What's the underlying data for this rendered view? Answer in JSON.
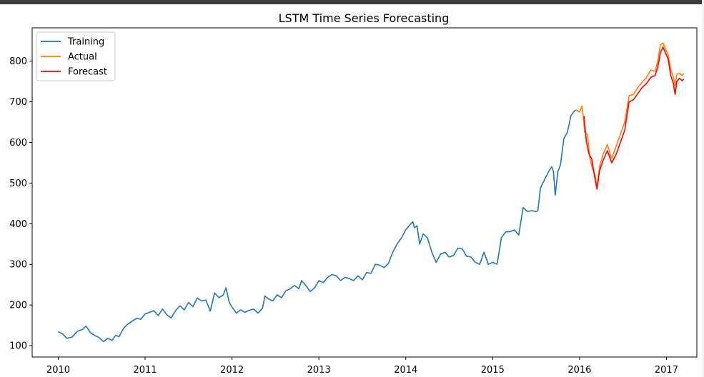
{
  "chart_data": {
    "type": "line",
    "title": "LSTM Time Series Forecasting",
    "xlabel": "",
    "ylabel": "",
    "xlim": [
      2009.7,
      2017.35
    ],
    "ylim": [
      72,
      882
    ],
    "x_ticks": [
      2010,
      2011,
      2012,
      2013,
      2014,
      2015,
      2016,
      2017
    ],
    "x_tick_labels": [
      "2010",
      "2011",
      "2012",
      "2013",
      "2014",
      "2015",
      "2016",
      "2017"
    ],
    "y_ticks": [
      100,
      200,
      300,
      400,
      500,
      600,
      700,
      800
    ],
    "y_tick_labels": [
      "100",
      "200",
      "300",
      "400",
      "500",
      "600",
      "700",
      "800"
    ],
    "grid": false,
    "legend_position": "top-left",
    "series": [
      {
        "name": "Training",
        "color": "#1f77b4",
        "points": [
          [
            2010.0,
            134
          ],
          [
            2010.05,
            129
          ],
          [
            2010.1,
            118
          ],
          [
            2010.16,
            121
          ],
          [
            2010.22,
            135
          ],
          [
            2010.28,
            140
          ],
          [
            2010.32,
            148
          ],
          [
            2010.37,
            132
          ],
          [
            2010.42,
            125
          ],
          [
            2010.47,
            120
          ],
          [
            2010.52,
            110
          ],
          [
            2010.57,
            118
          ],
          [
            2010.62,
            113
          ],
          [
            2010.66,
            125
          ],
          [
            2010.7,
            122
          ],
          [
            2010.75,
            142
          ],
          [
            2010.8,
            153
          ],
          [
            2010.85,
            160
          ],
          [
            2010.9,
            167
          ],
          [
            2010.95,
            165
          ],
          [
            2011.0,
            178
          ],
          [
            2011.05,
            182
          ],
          [
            2011.1,
            186
          ],
          [
            2011.15,
            174
          ],
          [
            2011.2,
            190
          ],
          [
            2011.25,
            176
          ],
          [
            2011.3,
            168
          ],
          [
            2011.35,
            186
          ],
          [
            2011.4,
            198
          ],
          [
            2011.45,
            188
          ],
          [
            2011.5,
            206
          ],
          [
            2011.55,
            196
          ],
          [
            2011.6,
            217
          ],
          [
            2011.65,
            210
          ],
          [
            2011.7,
            212
          ],
          [
            2011.75,
            185
          ],
          [
            2011.8,
            230
          ],
          [
            2011.85,
            218
          ],
          [
            2011.9,
            225
          ],
          [
            2011.93,
            242
          ],
          [
            2011.97,
            205
          ],
          [
            2012.0,
            195
          ],
          [
            2012.05,
            180
          ],
          [
            2012.1,
            188
          ],
          [
            2012.15,
            182
          ],
          [
            2012.2,
            187
          ],
          [
            2012.25,
            190
          ],
          [
            2012.3,
            180
          ],
          [
            2012.35,
            192
          ],
          [
            2012.38,
            222
          ],
          [
            2012.42,
            215
          ],
          [
            2012.47,
            210
          ],
          [
            2012.52,
            225
          ],
          [
            2012.57,
            218
          ],
          [
            2012.62,
            235
          ],
          [
            2012.67,
            240
          ],
          [
            2012.72,
            248
          ],
          [
            2012.77,
            240
          ],
          [
            2012.8,
            260
          ],
          [
            2012.85,
            248
          ],
          [
            2012.9,
            233
          ],
          [
            2012.95,
            242
          ],
          [
            2013.0,
            260
          ],
          [
            2013.05,
            255
          ],
          [
            2013.1,
            268
          ],
          [
            2013.15,
            275
          ],
          [
            2013.2,
            272
          ],
          [
            2013.25,
            260
          ],
          [
            2013.3,
            268
          ],
          [
            2013.35,
            265
          ],
          [
            2013.4,
            260
          ],
          [
            2013.45,
            272
          ],
          [
            2013.5,
            262
          ],
          [
            2013.55,
            280
          ],
          [
            2013.6,
            278
          ],
          [
            2013.65,
            300
          ],
          [
            2013.7,
            298
          ],
          [
            2013.75,
            292
          ],
          [
            2013.8,
            302
          ],
          [
            2013.85,
            330
          ],
          [
            2013.9,
            350
          ],
          [
            2013.95,
            365
          ],
          [
            2014.0,
            385
          ],
          [
            2014.05,
            398
          ],
          [
            2014.08,
            405
          ],
          [
            2014.1,
            390
          ],
          [
            2014.13,
            395
          ],
          [
            2014.16,
            350
          ],
          [
            2014.2,
            375
          ],
          [
            2014.25,
            365
          ],
          [
            2014.3,
            330
          ],
          [
            2014.35,
            305
          ],
          [
            2014.4,
            325
          ],
          [
            2014.45,
            330
          ],
          [
            2014.5,
            318
          ],
          [
            2014.55,
            322
          ],
          [
            2014.6,
            340
          ],
          [
            2014.65,
            338
          ],
          [
            2014.7,
            320
          ],
          [
            2014.75,
            318
          ],
          [
            2014.8,
            305
          ],
          [
            2014.85,
            300
          ],
          [
            2014.9,
            330
          ],
          [
            2014.95,
            300
          ],
          [
            2015.0,
            305
          ],
          [
            2015.05,
            300
          ],
          [
            2015.1,
            365
          ],
          [
            2015.15,
            380
          ],
          [
            2015.2,
            380
          ],
          [
            2015.25,
            385
          ],
          [
            2015.3,
            372
          ],
          [
            2015.35,
            440
          ],
          [
            2015.4,
            430
          ],
          [
            2015.45,
            432
          ],
          [
            2015.5,
            430
          ],
          [
            2015.52,
            432
          ],
          [
            2015.55,
            488
          ],
          [
            2015.6,
            510
          ],
          [
            2015.65,
            530
          ],
          [
            2015.68,
            540
          ],
          [
            2015.7,
            528
          ],
          [
            2015.72,
            470
          ],
          [
            2015.75,
            528
          ],
          [
            2015.78,
            545
          ],
          [
            2015.82,
            610
          ],
          [
            2015.86,
            625
          ],
          [
            2015.9,
            665
          ],
          [
            2015.93,
            675
          ],
          [
            2015.96,
            680
          ]
        ]
      },
      {
        "name": "Actual",
        "color": "#ff7f0e",
        "points": [
          [
            2015.96,
            680
          ],
          [
            2016.0,
            675
          ],
          [
            2016.03,
            690
          ],
          [
            2016.06,
            625
          ],
          [
            2016.09,
            620
          ],
          [
            2016.12,
            560
          ],
          [
            2016.15,
            535
          ],
          [
            2016.18,
            520
          ],
          [
            2016.2,
            488
          ],
          [
            2016.23,
            540
          ],
          [
            2016.27,
            570
          ],
          [
            2016.32,
            595
          ],
          [
            2016.37,
            560
          ],
          [
            2016.42,
            590
          ],
          [
            2016.47,
            620
          ],
          [
            2016.52,
            650
          ],
          [
            2016.57,
            715
          ],
          [
            2016.62,
            718
          ],
          [
            2016.67,
            735
          ],
          [
            2016.72,
            748
          ],
          [
            2016.77,
            760
          ],
          [
            2016.82,
            778
          ],
          [
            2016.87,
            775
          ],
          [
            2016.9,
            800
          ],
          [
            2016.93,
            840
          ],
          [
            2016.96,
            845
          ],
          [
            2016.99,
            830
          ],
          [
            2017.02,
            815
          ],
          [
            2017.05,
            780
          ],
          [
            2017.08,
            760
          ],
          [
            2017.1,
            740
          ],
          [
            2017.12,
            768
          ],
          [
            2017.15,
            770
          ],
          [
            2017.18,
            765
          ],
          [
            2017.2,
            770
          ]
        ]
      },
      {
        "name": "Forecast",
        "color": "#ff0000",
        "points": [
          [
            2016.05,
            665
          ],
          [
            2016.08,
            600
          ],
          [
            2016.11,
            570
          ],
          [
            2016.14,
            560
          ],
          [
            2016.17,
            520
          ],
          [
            2016.2,
            485
          ],
          [
            2016.23,
            530
          ],
          [
            2016.27,
            555
          ],
          [
            2016.32,
            580
          ],
          [
            2016.37,
            550
          ],
          [
            2016.42,
            570
          ],
          [
            2016.47,
            600
          ],
          [
            2016.52,
            630
          ],
          [
            2016.57,
            700
          ],
          [
            2016.62,
            705
          ],
          [
            2016.67,
            720
          ],
          [
            2016.72,
            735
          ],
          [
            2016.77,
            745
          ],
          [
            2016.82,
            760
          ],
          [
            2016.87,
            765
          ],
          [
            2016.9,
            785
          ],
          [
            2016.93,
            820
          ],
          [
            2016.96,
            835
          ],
          [
            2016.99,
            820
          ],
          [
            2017.02,
            805
          ],
          [
            2017.05,
            765
          ],
          [
            2017.08,
            745
          ],
          [
            2017.1,
            718
          ],
          [
            2017.12,
            750
          ],
          [
            2017.15,
            758
          ],
          [
            2017.18,
            752
          ],
          [
            2017.2,
            756
          ]
        ]
      }
    ]
  }
}
